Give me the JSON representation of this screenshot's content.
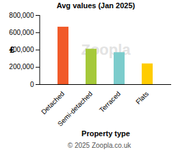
{
  "chart_data": {
    "type": "bar",
    "title": "Avg values (Jan 2025)",
    "x_label": "Property type",
    "y_label": "£",
    "caption": "© 2025 Zoopla.co.uk",
    "annotations": [
      "Zoopla"
    ],
    "categories": [
      "Detached",
      "Semi-detached",
      "Terraced",
      "Flats"
    ],
    "values": [
      665000,
      410000,
      370000,
      240000
    ],
    "colors": [
      "#f15a29",
      "#a5c93a",
      "#7ccccc",
      "#ffcc00"
    ],
    "ylim": [
      0,
      800000
    ],
    "yticks": [
      0,
      {
        "value": 200000,
        "label": "200,000"
      },
      {
        "value": 400000,
        "label": "400,000"
      },
      {
        "value": 600000,
        "label": "600,000"
      },
      {
        "value": 800000,
        "label": "800,000"
      }
    ],
    "grid": false
  }
}
